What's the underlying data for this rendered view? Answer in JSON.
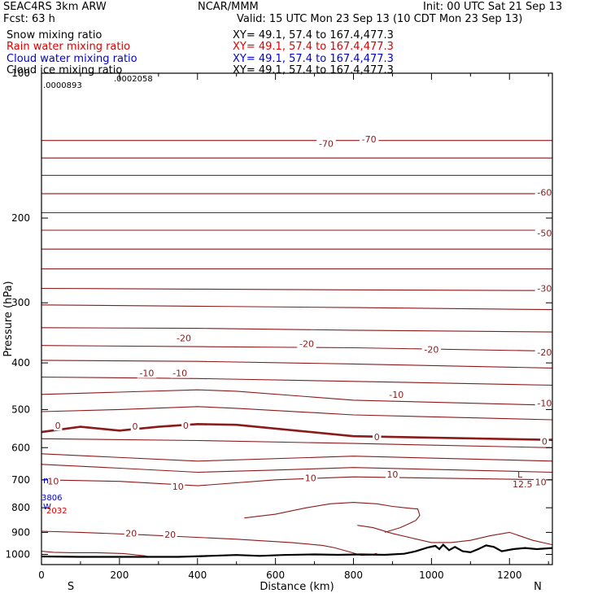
{
  "header": {
    "model": "SEAC4RS  3km ARW",
    "org": "NCAR/MMM",
    "init": "Init: 00 UTC Sat 21 Sep 13",
    "fcst": "Fcst:    63 h",
    "valid": "Valid: 15 UTC Mon 23 Sep 13 (10 CDT Mon 23 Sep 13)",
    "fields": [
      {
        "label": "Snow mixing ratio",
        "xy": "XY=  49.1, 57.4 to 167.4,477.3",
        "color": "#000000"
      },
      {
        "label": "Rain water mixing ratio",
        "xy": "XY=  49.1, 57.4 to 167.4,477.3",
        "color": "#e00000"
      },
      {
        "label": "Cloud water mixing ratio",
        "xy": "XY=  49.1, 57.4 to 167.4,477.3",
        "color": "#0000d0"
      },
      {
        "label": "Cloud ice mixing ratio",
        "xy": "XY=  49.1, 57.4 to 167.4,477.3",
        "color": "#000000"
      }
    ]
  },
  "annotations": {
    "max_a": ".0002058",
    "max_b": ".0000893",
    "low_L": "L",
    "low_val": "12.5",
    "left_n": "n",
    "left_val1": "3806",
    "left_w": "W",
    "left_val2": "2032"
  },
  "chart_data": {
    "type": "line",
    "title": "",
    "xlabel": "Distance (km)",
    "ylabel": "Pressure (hPa)",
    "xlim": [
      0,
      1310
    ],
    "ylim": [
      100,
      1050
    ],
    "y_scale": "log",
    "x_ticks": [
      0,
      200,
      400,
      600,
      800,
      1000,
      1200
    ],
    "y_ticks": [
      100,
      200,
      300,
      400,
      500,
      600,
      700,
      800,
      900,
      1000
    ],
    "x_end_labels": {
      "left": "S",
      "right": "N"
    },
    "grid": false,
    "contour_color": "#8b1a1a",
    "isotherms": [
      {
        "x": [
          0,
          400,
          800,
          1310
        ],
        "p": [
          138,
          138,
          138,
          138
        ]
      },
      {
        "x": [
          0,
          400,
          800,
          1310
        ],
        "p": [
          150,
          150,
          150,
          150
        ]
      },
      {
        "x": [
          0,
          400,
          800,
          1310
        ],
        "p": [
          163,
          163,
          163,
          163
        ]
      },
      {
        "x": [
          0,
          400,
          800,
          1310
        ],
        "p": [
          178,
          178,
          178,
          178
        ]
      },
      {
        "x": [
          0,
          400,
          800,
          1310
        ],
        "p": [
          195,
          195,
          195,
          195
        ]
      },
      {
        "x": [
          0,
          400,
          800,
          1310
        ],
        "p": [
          212,
          212,
          212,
          212
        ]
      },
      {
        "x": [
          0,
          400,
          800,
          1310
        ],
        "p": [
          232,
          232,
          232,
          232
        ]
      },
      {
        "x": [
          0,
          400,
          800,
          1310
        ],
        "p": [
          255,
          255,
          255,
          255
        ]
      },
      {
        "x": [
          0,
          400,
          800,
          1310
        ],
        "p": [
          280,
          281,
          282,
          283
        ]
      },
      {
        "x": [
          0,
          400,
          800,
          1310
        ],
        "p": [
          303,
          305,
          307,
          310
        ]
      },
      {
        "x": [
          0,
          400,
          800,
          1310
        ],
        "p": [
          338,
          339,
          342,
          345
        ]
      },
      {
        "x": [
          0,
          400,
          800,
          1310
        ],
        "p": [
          368,
          370,
          372,
          378
        ]
      },
      {
        "x": [
          0,
          400,
          800,
          1310
        ],
        "p": [
          395,
          397,
          402,
          410
        ]
      },
      {
        "x": [
          0,
          400,
          800,
          1310
        ],
        "p": [
          428,
          431,
          437,
          445
        ]
      },
      {
        "x": [
          0,
          200,
          400,
          500,
          800,
          1310
        ],
        "p": [
          465,
          460,
          455,
          458,
          478,
          490
        ]
      },
      {
        "x": [
          0,
          200,
          400,
          500,
          800,
          1310
        ],
        "p": [
          505,
          500,
          493,
          497,
          513,
          525
        ]
      },
      {
        "x": [
          0,
          100,
          200,
          300,
          400,
          500,
          800,
          1310
        ],
        "p": [
          557,
          543,
          553,
          543,
          536,
          538,
          568,
          578
        ],
        "bold": true
      },
      {
        "x": [
          0,
          400,
          800,
          1310
        ],
        "p": [
          575,
          580,
          588,
          600
        ]
      },
      {
        "x": [
          0,
          400,
          800,
          1310
        ],
        "p": [
          618,
          640,
          625,
          640
        ]
      },
      {
        "x": [
          0,
          200,
          400,
          600,
          800,
          1310
        ],
        "p": [
          650,
          662,
          675,
          668,
          660,
          675
        ]
      },
      {
        "x": [
          0,
          200,
          400,
          600,
          800,
          1310
        ],
        "p": [
          700,
          705,
          720,
          700,
          690,
          700
        ]
      }
    ],
    "contour_labels": [
      {
        "x": 730,
        "p": 140,
        "text": "-70"
      },
      {
        "x": 840,
        "p": 137,
        "text": "-70"
      },
      {
        "x": 1290,
        "p": 177,
        "text": "-60"
      },
      {
        "x": 1290,
        "p": 215,
        "text": "-50"
      },
      {
        "x": 1290,
        "p": 280,
        "text": "-30"
      },
      {
        "x": 365,
        "p": 355,
        "text": "-20"
      },
      {
        "x": 680,
        "p": 365,
        "text": "-20"
      },
      {
        "x": 1000,
        "p": 375,
        "text": "-20"
      },
      {
        "x": 1290,
        "p": 380,
        "text": "-20"
      },
      {
        "x": 270,
        "p": 420,
        "text": "-10"
      },
      {
        "x": 355,
        "p": 420,
        "text": "-10"
      },
      {
        "x": 910,
        "p": 465,
        "text": "-10"
      },
      {
        "x": 1290,
        "p": 485,
        "text": "-10"
      },
      {
        "x": 42,
        "p": 540,
        "text": "0"
      },
      {
        "x": 240,
        "p": 542,
        "text": "0"
      },
      {
        "x": 370,
        "p": 540,
        "text": "0"
      },
      {
        "x": 860,
        "p": 570,
        "text": "0"
      },
      {
        "x": 1290,
        "p": 582,
        "text": "0"
      },
      {
        "x": 30,
        "p": 705,
        "text": "10"
      },
      {
        "x": 350,
        "p": 722,
        "text": "10"
      },
      {
        "x": 690,
        "p": 693,
        "text": "10"
      },
      {
        "x": 900,
        "p": 682,
        "text": "10"
      },
      {
        "x": 1280,
        "p": 707,
        "text": "10"
      },
      {
        "x": 230,
        "p": 903,
        "text": "20"
      },
      {
        "x": 330,
        "p": 910,
        "text": "20"
      }
    ],
    "contour_20": {
      "x": [
        0,
        100,
        250,
        500,
        640,
        720,
        750,
        790,
        820,
        845,
        860
      ],
      "p": [
        895,
        900,
        910,
        930,
        945,
        958,
        968,
        988,
        1005,
        1003,
        995
      ]
    },
    "contour_20_left": {
      "x": [
        0,
        30,
        80,
        140,
        210,
        270
      ],
      "p": [
        985,
        990,
        992,
        992,
        996,
        1008
      ]
    },
    "contour_12_5": {
      "x": [
        810,
        850,
        900,
        950,
        1000,
        1050,
        1100,
        1150,
        1200,
        1260,
        1310
      ],
      "p": [
        870,
        880,
        905,
        925,
        945,
        945,
        935,
        915,
        900,
        935,
        955
      ]
    },
    "contour_10": {
      "x": [
        520,
        600,
        680,
        740,
        800,
        860,
        900,
        930,
        965,
        970,
        960,
        940,
        920,
        880
      ],
      "p": [
        840,
        825,
        800,
        785,
        780,
        785,
        795,
        800,
        805,
        830,
        850,
        865,
        880,
        900
      ]
    },
    "terrain": {
      "x": [
        0,
        100,
        200,
        280,
        350,
        420,
        500,
        560,
        620,
        700,
        760,
        820,
        880,
        930,
        960,
        990,
        1010,
        1020,
        1030,
        1045,
        1060,
        1080,
        1100,
        1120,
        1140,
        1160,
        1180,
        1210,
        1240,
        1270,
        1310
      ],
      "p": [
        1010,
        1012,
        1012,
        1012,
        1012,
        1008,
        1003,
        1007,
        1003,
        1000,
        1002,
        1000,
        1002,
        997,
        985,
        968,
        960,
        975,
        955,
        980,
        965,
        985,
        990,
        975,
        958,
        965,
        985,
        975,
        970,
        975,
        970
      ]
    }
  }
}
